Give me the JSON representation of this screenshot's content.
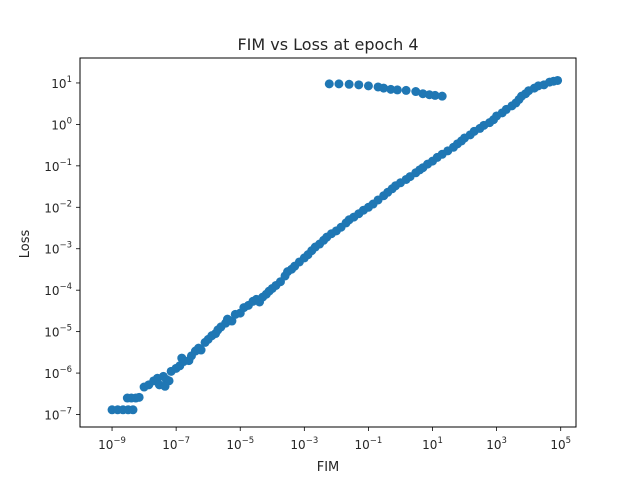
{
  "chart_data": {
    "type": "scatter",
    "title": "FIM vs Loss at epoch 4",
    "xlabel": "FIM",
    "ylabel": "Loss",
    "xscale": "log",
    "yscale": "log",
    "xlim": [
      1e-10,
      300000.0
    ],
    "ylim": [
      5e-08,
      40.0
    ],
    "grid": false,
    "legend": "none",
    "marker_color": "#1f77b4",
    "x_ticks": [
      {
        "base": "10",
        "exp": "−9",
        "value": 1e-09
      },
      {
        "base": "10",
        "exp": "−7",
        "value": 1e-07
      },
      {
        "base": "10",
        "exp": "−5",
        "value": 1e-05
      },
      {
        "base": "10",
        "exp": "−3",
        "value": 0.001
      },
      {
        "base": "10",
        "exp": "−1",
        "value": 0.1
      },
      {
        "base": "10",
        "exp": "1",
        "value": 10.0
      },
      {
        "base": "10",
        "exp": "3",
        "value": 1000.0
      },
      {
        "base": "10",
        "exp": "5",
        "value": 100000.0
      }
    ],
    "y_ticks": [
      {
        "base": "10",
        "exp": "−7",
        "value": 1e-07
      },
      {
        "base": "10",
        "exp": "−6",
        "value": 1e-06
      },
      {
        "base": "10",
        "exp": "−5",
        "value": 1e-05
      },
      {
        "base": "10",
        "exp": "−4",
        "value": 0.0001
      },
      {
        "base": "10",
        "exp": "−3",
        "value": 0.001
      },
      {
        "base": "10",
        "exp": "−2",
        "value": 0.01
      },
      {
        "base": "10",
        "exp": "−1",
        "value": 0.1
      },
      {
        "base": "10",
        "exp": "0",
        "value": 1
      },
      {
        "base": "10",
        "exp": "1",
        "value": 10.0
      }
    ],
    "points": [
      [
        1e-09,
        1.3e-07
      ],
      [
        1.5e-09,
        1.3e-07
      ],
      [
        2.2e-09,
        1.3e-07
      ],
      [
        3.2e-09,
        1.3e-07
      ],
      [
        4.5e-09,
        1.3e-07
      ],
      [
        3e-09,
        2.5e-07
      ],
      [
        4e-09,
        2.5e-07
      ],
      [
        5.5e-09,
        2.5e-07
      ],
      [
        7e-09,
        2.6e-07
      ],
      [
        1e-08,
        4.6e-07
      ],
      [
        1.4e-08,
        5.2e-07
      ],
      [
        2e-08,
        6.5e-07
      ],
      [
        2.6e-08,
        7.5e-07
      ],
      [
        3e-08,
        5.2e-07
      ],
      [
        4e-08,
        8.3e-07
      ],
      [
        5e-08,
        7e-07
      ],
      [
        6e-08,
        6.5e-07
      ],
      [
        4.5e-08,
        4.8e-07
      ],
      [
        7e-08,
        1.1e-06
      ],
      [
        1e-07,
        1.3e-06
      ],
      [
        1.3e-07,
        1.5e-06
      ],
      [
        1.7e-07,
        1.9e-06
      ],
      [
        1.5e-07,
        2.3e-06
      ],
      [
        2.5e-07,
        2e-06
      ],
      [
        3e-07,
        2.6e-06
      ],
      [
        4e-07,
        3.4e-06
      ],
      [
        5e-07,
        4e-06
      ],
      [
        6e-07,
        3.6e-06
      ],
      [
        8e-07,
        5.5e-06
      ],
      [
        1e-06,
        6.5e-06
      ],
      [
        1.3e-06,
        8e-06
      ],
      [
        1.7e-06,
        9e-06
      ],
      [
        2e-06,
        1.1e-05
      ],
      [
        2.5e-06,
        1.3e-05
      ],
      [
        3.5e-06,
        1.6e-05
      ],
      [
        4e-06,
        2e-05
      ],
      [
        5.5e-06,
        1.8e-05
      ],
      [
        7e-06,
        2.6e-05
      ],
      [
        1e-05,
        2.8e-05
      ],
      [
        1.3e-05,
        3.8e-05
      ],
      [
        1.8e-05,
        4.3e-05
      ],
      [
        2.5e-05,
        5.4e-05
      ],
      [
        3.2e-05,
        6e-05
      ],
      [
        4e-05,
        5.2e-05
      ],
      [
        5e-05,
        6.8e-05
      ],
      [
        6.5e-05,
        8e-05
      ],
      [
        8e-05,
        9.5e-05
      ],
      [
        0.0001,
        0.00011
      ],
      [
        0.00013,
        0.00013
      ],
      [
        0.00018,
        0.00016
      ],
      [
        0.00025,
        0.00022
      ],
      [
        0.0003,
        0.00028
      ],
      [
        0.0004,
        0.00032
      ],
      [
        0.0005,
        0.00038
      ],
      [
        0.0007,
        0.00048
      ],
      [
        0.001,
        0.0006
      ],
      [
        0.0013,
        0.00072
      ],
      [
        0.0017,
        0.0009
      ],
      [
        0.0022,
        0.0011
      ],
      [
        0.003,
        0.0013
      ],
      [
        0.004,
        0.0016
      ],
      [
        0.005,
        0.0019
      ],
      [
        0.007,
        0.0023
      ],
      [
        0.01,
        0.0027
      ],
      [
        0.014,
        0.0033
      ],
      [
        0.02,
        0.0042
      ],
      [
        0.025,
        0.005
      ],
      [
        0.035,
        0.0058
      ],
      [
        0.05,
        0.007
      ],
      [
        0.07,
        0.0085
      ],
      [
        0.1,
        0.01
      ],
      [
        0.14,
        0.012
      ],
      [
        0.2,
        0.015
      ],
      [
        0.3,
        0.019
      ],
      [
        0.4,
        0.023
      ],
      [
        0.55,
        0.028
      ],
      [
        0.7,
        0.033
      ],
      [
        1,
        0.039
      ],
      [
        1.5,
        0.047
      ],
      [
        2,
        0.055
      ],
      [
        3,
        0.068
      ],
      [
        4,
        0.08
      ],
      [
        5,
        0.09
      ],
      [
        7,
        0.11
      ],
      [
        10,
        0.13
      ],
      [
        14,
        0.16
      ],
      [
        20,
        0.19
      ],
      [
        30,
        0.23
      ],
      [
        45,
        0.28
      ],
      [
        60,
        0.34
      ],
      [
        80,
        0.4
      ],
      [
        100,
        0.47
      ],
      [
        150,
        0.56
      ],
      [
        200,
        0.68
      ],
      [
        300,
        0.8
      ],
      [
        400,
        0.95
      ],
      [
        600,
        1.1
      ],
      [
        800,
        1.3
      ],
      [
        1000,
        1.6
      ],
      [
        1500,
        1.9
      ],
      [
        2000,
        2.3
      ],
      [
        3000,
        2.8
      ],
      [
        4000,
        3.3
      ],
      [
        5000,
        4
      ],
      [
        6000,
        4.8
      ],
      [
        8000,
        5.5
      ],
      [
        10000,
        6.5
      ],
      [
        15000,
        7.5
      ],
      [
        20000,
        8.5
      ],
      [
        30000,
        9
      ],
      [
        45000,
        10.5
      ],
      [
        60000,
        11.0
      ],
      [
        80000,
        11.5
      ],
      [
        0.006,
        9.5
      ],
      [
        0.012,
        9.5
      ],
      [
        0.025,
        9.3
      ],
      [
        0.05,
        9
      ],
      [
        0.1,
        8.5
      ],
      [
        0.2,
        8
      ],
      [
        0.3,
        7.5
      ],
      [
        0.5,
        7
      ],
      [
        0.8,
        6.8
      ],
      [
        1.5,
        6.6
      ],
      [
        3,
        6.2
      ],
      [
        5,
        5.5
      ],
      [
        8,
        5.2
      ],
      [
        12,
        5
      ],
      [
        20,
        4.8
      ]
    ]
  }
}
